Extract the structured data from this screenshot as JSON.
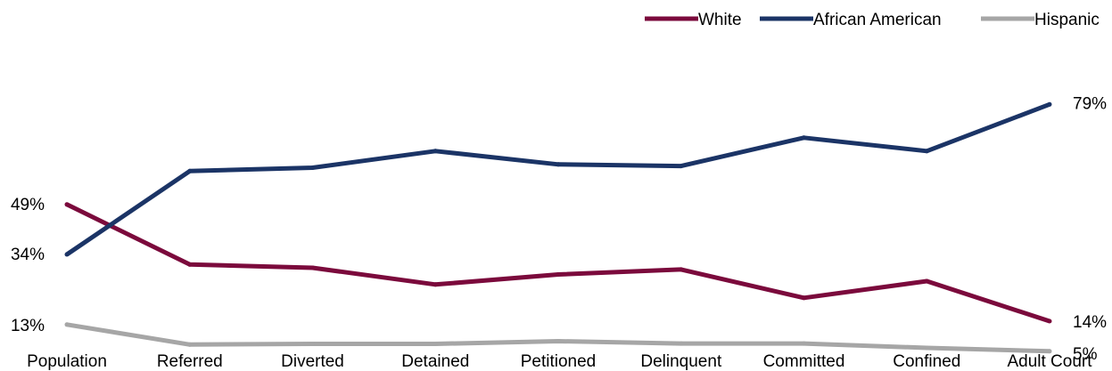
{
  "chart_data": {
    "type": "line",
    "categories": [
      "Population",
      "Referred",
      "Diverted",
      "Detained",
      "Petitioned",
      "Delinquent",
      "Committed",
      "Confined",
      "Adult Court"
    ],
    "series": [
      {
        "name": "White",
        "color": "#7b0a3c",
        "values": [
          49,
          31,
          30,
          25,
          28,
          29.5,
          21,
          26,
          14
        ]
      },
      {
        "name": "African American",
        "color": "#1b3466",
        "values": [
          34,
          59,
          60,
          65,
          61,
          60.5,
          69,
          65,
          79
        ]
      },
      {
        "name": "Hispanic",
        "color": "#a6a6a6",
        "values": [
          13,
          7,
          7.2,
          7.2,
          8,
          7.3,
          7.3,
          6,
          5
        ]
      }
    ],
    "start_labels": [
      {
        "series": "White",
        "text": "49%"
      },
      {
        "series": "African American",
        "text": "34%"
      },
      {
        "series": "Hispanic",
        "text": "13%"
      }
    ],
    "end_labels": [
      {
        "series": "African American",
        "text": "79%"
      },
      {
        "series": "White",
        "text": "14%"
      },
      {
        "series": "Hispanic",
        "text": "5%"
      }
    ],
    "legend_position": "top-right",
    "grid": false
  }
}
